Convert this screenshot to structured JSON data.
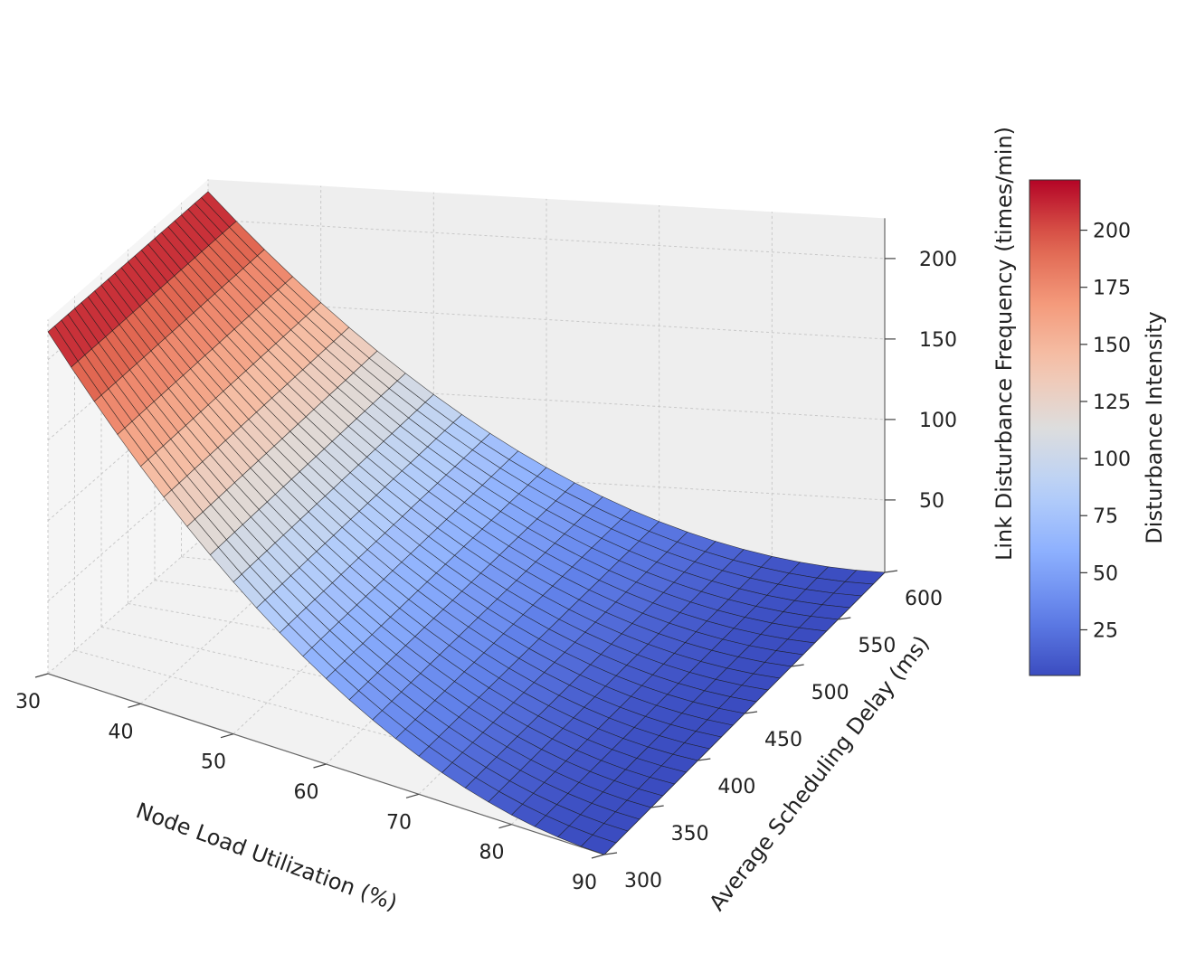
{
  "chart_data": {
    "type": "surface3d",
    "title": "",
    "x_axis": {
      "label": "Node Load Utilization (%)",
      "range": [
        30,
        90
      ],
      "ticks": [
        30,
        40,
        50,
        60,
        70,
        80,
        90
      ]
    },
    "y_axis": {
      "label": "Average Scheduling Delay (ms)",
      "range": [
        300,
        600
      ],
      "ticks": [
        300,
        350,
        400,
        450,
        500,
        550,
        600
      ]
    },
    "z_axis": {
      "label": "Link Disturbance Frequency (times/min)",
      "range": [
        5,
        225
      ],
      "ticks": [
        50,
        100,
        150,
        200
      ]
    },
    "colorbar": {
      "label": "Disturbance Intensity",
      "colormap": "coolwarm",
      "range": [
        5,
        222
      ],
      "ticks": [
        25,
        50,
        75,
        100,
        125,
        150,
        175,
        200
      ]
    },
    "surface": {
      "formula": "z = 5 + 0.059 * (x - 90)^2",
      "x_samples": 25,
      "y_samples": 25,
      "depends_on": "x",
      "min_value": 5,
      "min_at_x": 90,
      "max_value": 217,
      "max_at_x": 30
    },
    "grid": true
  }
}
